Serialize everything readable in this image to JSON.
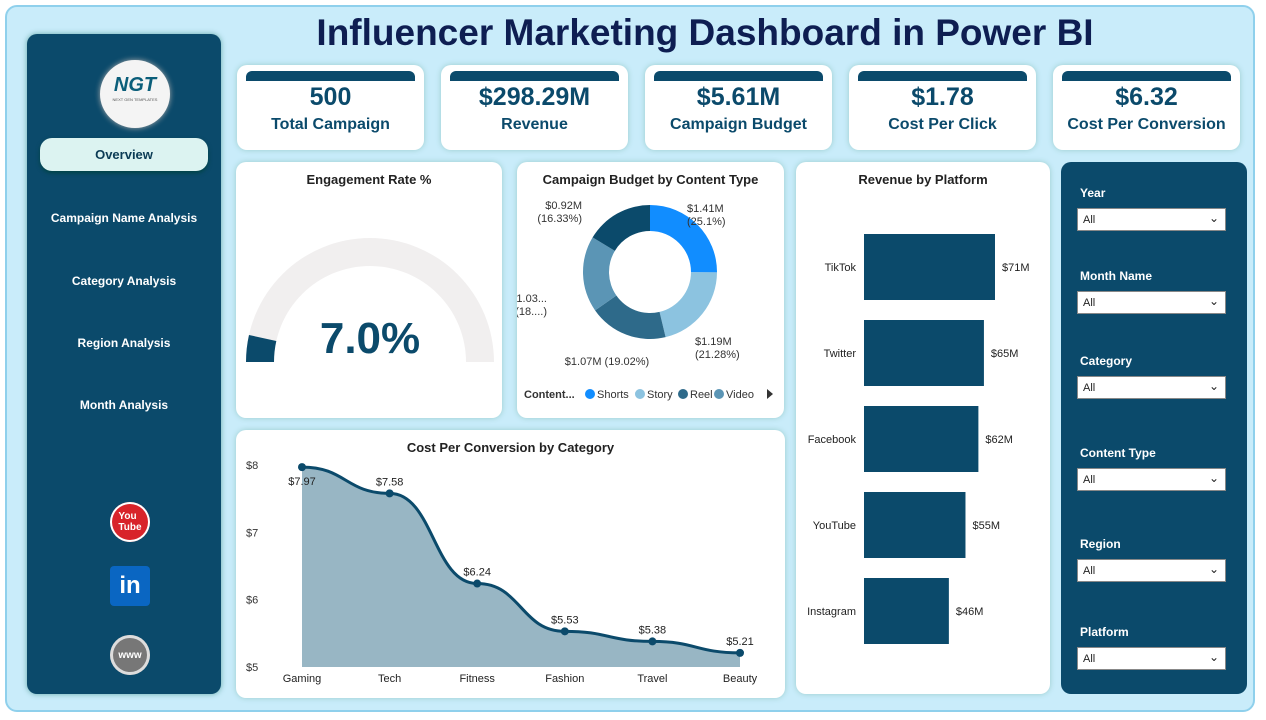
{
  "title": "Influencer Marketing Dashboard in Power BI",
  "logo": {
    "text": "NGT",
    "sub": "NEXT GEN TEMPLATES"
  },
  "nav": [
    "Overview",
    "Campaign Name Analysis",
    "Category Analysis",
    "Region Analysis",
    "Month Analysis"
  ],
  "social": [
    {
      "icon": "youtube-icon",
      "label": "You Tube",
      "color": "#d8232a"
    },
    {
      "icon": "linkedin-icon",
      "label": "in",
      "color": "#0a66c2"
    },
    {
      "icon": "globe-icon",
      "label": "www",
      "color": "#777"
    }
  ],
  "kpis": [
    {
      "value": "500",
      "label": "Total Campaign"
    },
    {
      "value": "$298.29M",
      "label": "Revenue"
    },
    {
      "value": "$5.61M",
      "label": "Campaign Budget"
    },
    {
      "value": "$1.78",
      "label": "Cost Per Click"
    },
    {
      "value": "$6.32",
      "label": "Cost Per Conversion"
    }
  ],
  "engagement": {
    "title": "Engagement Rate %",
    "value": "7.0%",
    "fraction": 0.07
  },
  "colors": {
    "navy": "#0b4a6b",
    "bg": "#c9ecfa"
  },
  "chart_data": [
    {
      "type": "pie",
      "title": "Campaign Budget by Content Type",
      "legend_title": "Content...",
      "legend_position": "bottom",
      "slices": [
        {
          "name": "Shorts",
          "value": 1.41,
          "label": "$1.41M",
          "pct": "(25.1%)",
          "color": "#118dff"
        },
        {
          "name": "Story",
          "value": 1.19,
          "label": "$1.19M",
          "pct": "(21.28%)",
          "color": "#8cc3e0"
        },
        {
          "name": "Reel",
          "value": 1.07,
          "label": "$1.07M (19.02%)",
          "pct": "",
          "color": "#2e6a8a"
        },
        {
          "name": "Video",
          "value": 1.03,
          "label": "$1.03...",
          "pct": "(18....)",
          "color": "#5b95b5"
        },
        {
          "name": "",
          "value": 0.92,
          "label": "$0.92M",
          "pct": "(16.33%)",
          "color": "#0b4a6b"
        }
      ]
    },
    {
      "type": "bar",
      "title": "Revenue by Platform",
      "categories": [
        "TikTok",
        "Twitter",
        "Facebook",
        "YouTube",
        "Instagram"
      ],
      "values": [
        71,
        65,
        62,
        55,
        46
      ],
      "labels": [
        "$71M",
        "$65M",
        "$62M",
        "$55M",
        "$46M"
      ],
      "orientation": "horizontal"
    },
    {
      "type": "area",
      "title": "Cost Per Conversion by Category",
      "categories": [
        "Gaming",
        "Tech",
        "Fitness",
        "Fashion",
        "Travel",
        "Beauty"
      ],
      "values": [
        7.97,
        7.58,
        6.24,
        5.53,
        5.38,
        5.21
      ],
      "labels": [
        "$7.97",
        "$7.58",
        "$6.24",
        "$5.53",
        "$5.38",
        "$5.21"
      ],
      "ylim": [
        5,
        8
      ],
      "yticks": [
        "$5",
        "$6",
        "$7",
        "$8"
      ]
    }
  ],
  "filters": [
    {
      "label": "Year",
      "value": "All"
    },
    {
      "label": "Month Name",
      "value": "All"
    },
    {
      "label": "Category",
      "value": "All"
    },
    {
      "label": "Content Type",
      "value": "All"
    },
    {
      "label": "Region",
      "value": "All"
    },
    {
      "label": "Platform",
      "value": "All"
    }
  ]
}
